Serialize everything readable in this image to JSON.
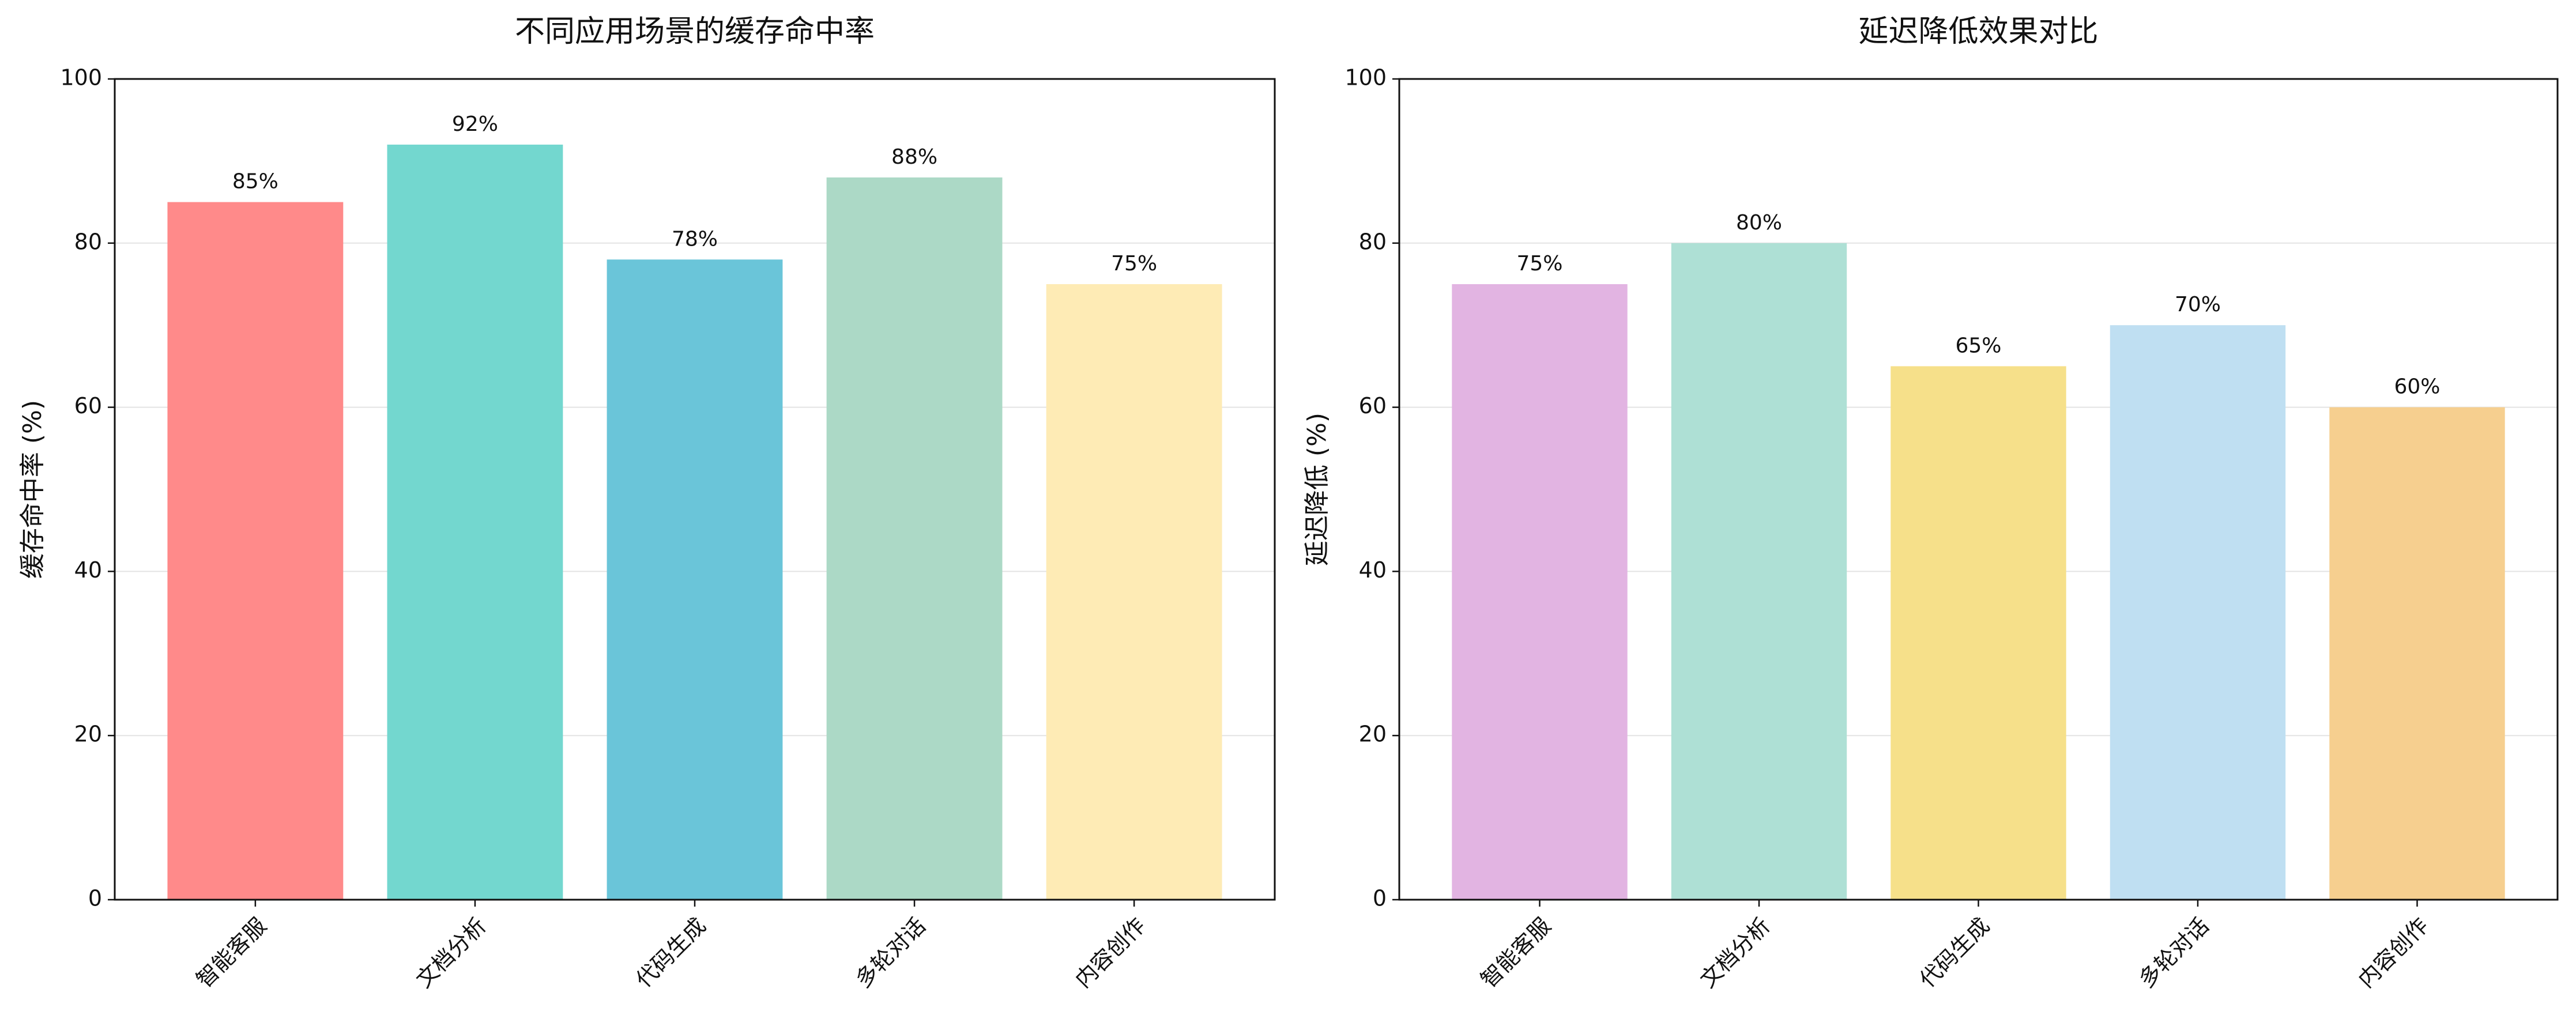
{
  "chart_data": [
    {
      "type": "bar",
      "title": "不同应用场景的缓存命中率",
      "y_label": "缓存命中率 (%)",
      "categories": [
        "智能客服",
        "文档分析",
        "代码生成",
        "多轮对话",
        "内容创作"
      ],
      "values": [
        85,
        92,
        78,
        88,
        75
      ],
      "value_labels": [
        "85%",
        "92%",
        "78%",
        "88%",
        "75%"
      ],
      "colors": [
        "#ff8a8a",
        "#73d7cf",
        "#6ac5d9",
        "#acd9c6",
        "#feebb5"
      ],
      "ylim": [
        0,
        100
      ],
      "yticks": [
        0,
        20,
        40,
        60,
        80,
        100
      ],
      "grid": true
    },
    {
      "type": "bar",
      "title": "延迟降低效果对比",
      "y_label": "延迟降低 (%)",
      "categories": [
        "智能客服",
        "文档分析",
        "代码生成",
        "多轮对话",
        "内容创作"
      ],
      "values": [
        75,
        80,
        65,
        70,
        60
      ],
      "value_labels": [
        "75%",
        "80%",
        "65%",
        "70%",
        "60%"
      ],
      "colors": [
        "#e2b4e2",
        "#aee0d5",
        "#f6e08a",
        "#bfdff2",
        "#f6cf8f"
      ],
      "ylim": [
        0,
        100
      ],
      "yticks": [
        0,
        20,
        40,
        60,
        80,
        100
      ],
      "grid": true
    }
  ]
}
